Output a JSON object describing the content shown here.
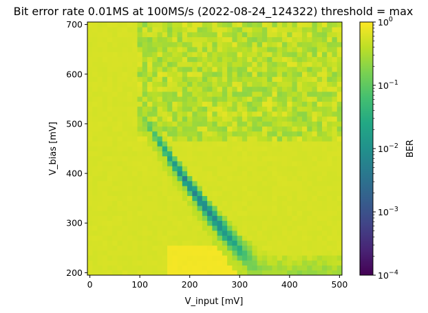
{
  "chart_data": {
    "type": "heatmap",
    "title": "Bit error rate 0.01MS at 100MS/s (2022-08-24_124322) threshold = max",
    "xlabel": "V_input [mV]",
    "ylabel": "V_bias [mV]",
    "xlim": [
      -5,
      505
    ],
    "ylim": [
      195,
      705
    ],
    "x_ticks": [
      {
        "value": 0,
        "label": "0"
      },
      {
        "value": 100,
        "label": "100"
      },
      {
        "value": 200,
        "label": "200"
      },
      {
        "value": 300,
        "label": "300"
      },
      {
        "value": 400,
        "label": "400"
      },
      {
        "value": 500,
        "label": "500"
      }
    ],
    "y_ticks": [
      {
        "value": 200,
        "label": "200"
      },
      {
        "value": 300,
        "label": "300"
      },
      {
        "value": 400,
        "label": "400"
      },
      {
        "value": 500,
        "label": "500"
      },
      {
        "value": 600,
        "label": "600"
      },
      {
        "value": 700,
        "label": "700"
      }
    ],
    "grid": false,
    "colormap": "viridis",
    "color_scale": "log",
    "colorbar": {
      "label": "BER",
      "range": [
        0.0001,
        1
      ],
      "ticks": [
        {
          "value": 1,
          "base": "10",
          "exp": "0"
        },
        {
          "value": 0.1,
          "base": "10",
          "exp": "−1"
        },
        {
          "value": 0.01,
          "base": "10",
          "exp": "−2"
        },
        {
          "value": 0.001,
          "base": "10",
          "exp": "−3"
        },
        {
          "value": 0.0001,
          "base": "10",
          "exp": "−4"
        }
      ]
    },
    "grid_spec": {
      "x_start": 0,
      "x_step": 10,
      "nx": 51,
      "y_start": 200,
      "y_step": 10,
      "ny": 51
    },
    "regions": {
      "background_ber": 0.6,
      "noisy_region": {
        "v_input_min": 100,
        "v_input_max": 500,
        "v_bias_min": 465,
        "v_bias_max": 705,
        "ber_range": [
          0.2,
          0.7
        ]
      },
      "error_valley": {
        "description_points": [
          {
            "v_input": 100,
            "v_bias": 520,
            "ber": 0.3
          },
          {
            "v_input": 130,
            "v_bias": 450,
            "ber": 0.08
          },
          {
            "v_input": 180,
            "v_bias": 390,
            "ber": 0.03
          },
          {
            "v_input": 240,
            "v_bias": 330,
            "ber": 0.01
          },
          {
            "v_input": 290,
            "v_bias": 280,
            "ber": 0.005
          },
          {
            "v_input": 330,
            "v_bias": 230,
            "ber": 0.01
          },
          {
            "v_input": 350,
            "v_bias": 200,
            "ber": 0.05
          }
        ]
      }
    }
  }
}
